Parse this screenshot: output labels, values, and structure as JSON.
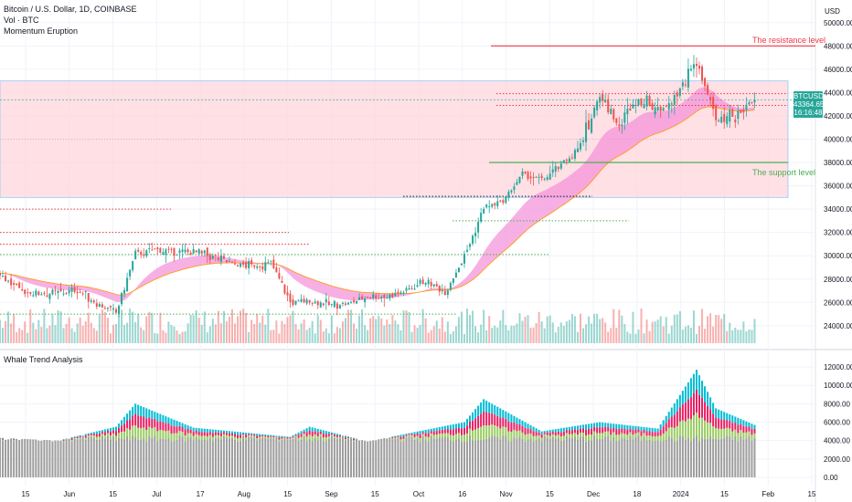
{
  "header": {
    "symbol_line": "Bitcoin / U.S. Dollar, 1D, COINBASE",
    "vol_line": "Vol · BTC",
    "indicator_line": "Momentum Eruption"
  },
  "lower_pane": {
    "title": "Whale Trend Analysis"
  },
  "price_axis": {
    "unit": "USD"
  },
  "last_price": {
    "symbol": "BTCUSD",
    "price": "43364.65",
    "countdown": "16:16:48"
  },
  "annotations": {
    "resistance": {
      "label": "The resistance level",
      "price": 48000,
      "color": "#f23645"
    },
    "support": {
      "label": "The support level",
      "price": 38000,
      "color": "#4caf50"
    }
  },
  "colors": {
    "up": "#26a69a",
    "down": "#ef5350",
    "cloud": "#f48fd8",
    "range_band": "#ffd6dc",
    "whale_up": "#00bcd4",
    "whale_down": "#e91e63",
    "whale_mid": "#9ccc65",
    "whale_base": "#9e9e9e"
  },
  "chart_data": [
    {
      "type": "candlestick",
      "title": "Bitcoin / U.S. Dollar, 1D, COINBASE",
      "ylim": [
        22500,
        51000
      ],
      "y_ticks": [
        "24000.00",
        "26000.00",
        "28000.00",
        "30000.00",
        "32000.00",
        "34000.00",
        "36000.00",
        "38000.00",
        "40000.00",
        "42000.00",
        "44000.00",
        "46000.00",
        "48000.00",
        "50000.00"
      ],
      "x_ticks": [
        "15",
        "Jun",
        "15",
        "Jul",
        "17",
        "Aug",
        "15",
        "Sep",
        "15",
        "Oct",
        "16",
        "Nov",
        "15",
        "Dec",
        "18",
        "2024",
        "15",
        "Feb",
        "15"
      ],
      "x_start": "2023-05-01",
      "x_end": "2024-02-20",
      "weekly_close": [
        [
          "2023-05-01",
          28500
        ],
        [
          "2023-05-08",
          26900
        ],
        [
          "2023-05-15",
          26800
        ],
        [
          "2023-05-22",
          26800
        ],
        [
          "2023-05-29",
          27100
        ],
        [
          "2023-06-05",
          25900
        ],
        [
          "2023-06-12",
          25100
        ],
        [
          "2023-06-19",
          30200
        ],
        [
          "2023-06-26",
          30500
        ],
        [
          "2023-07-03",
          30300
        ],
        [
          "2023-07-10",
          30300
        ],
        [
          "2023-07-17",
          29900
        ],
        [
          "2023-07-24",
          29300
        ],
        [
          "2023-07-31",
          29100
        ],
        [
          "2023-08-07",
          29400
        ],
        [
          "2023-08-14",
          26000
        ],
        [
          "2023-08-21",
          26100
        ],
        [
          "2023-08-28",
          25800
        ],
        [
          "2023-09-04",
          25900
        ],
        [
          "2023-09-11",
          26500
        ],
        [
          "2023-09-18",
          26500
        ],
        [
          "2023-09-25",
          27000
        ],
        [
          "2023-10-02",
          27900
        ],
        [
          "2023-10-09",
          26900
        ],
        [
          "2023-10-16",
          29900
        ],
        [
          "2023-10-23",
          34100
        ],
        [
          "2023-10-30",
          34700
        ],
        [
          "2023-11-06",
          37000
        ],
        [
          "2023-11-13",
          36500
        ],
        [
          "2023-11-20",
          37700
        ],
        [
          "2023-11-27",
          39500
        ],
        [
          "2023-12-04",
          43800
        ],
        [
          "2023-12-11",
          41300
        ],
        [
          "2023-12-18",
          43700
        ],
        [
          "2023-12-25",
          42200
        ],
        [
          "2024-01-01",
          44000
        ],
        [
          "2024-01-08",
          46500
        ],
        [
          "2024-01-15",
          41600
        ],
        [
          "2024-01-22",
          41800
        ],
        [
          "2024-01-29",
          43364.65
        ]
      ]
    },
    {
      "type": "bar",
      "title": "Whale Trend Analysis",
      "ylim": [
        -500,
        13000
      ],
      "y_ticks": [
        "0.00",
        "2000.00",
        "4000.00",
        "6000.00",
        "8000.00",
        "10000.00",
        "12000.00"
      ],
      "weekly_value": [
        [
          "2023-05-01",
          4300
        ],
        [
          "2023-05-22",
          4000
        ],
        [
          "2023-06-12",
          5500
        ],
        [
          "2023-06-19",
          8000
        ],
        [
          "2023-07-10",
          5400
        ],
        [
          "2023-08-14",
          4400
        ],
        [
          "2023-08-21",
          5500
        ],
        [
          "2023-09-11",
          3900
        ],
        [
          "2023-10-16",
          6000
        ],
        [
          "2023-10-23",
          8500
        ],
        [
          "2023-11-13",
          5000
        ],
        [
          "2023-12-04",
          6000
        ],
        [
          "2023-12-25",
          5300
        ],
        [
          "2024-01-08",
          11700
        ],
        [
          "2024-01-15",
          7500
        ],
        [
          "2024-01-29",
          5700
        ]
      ]
    }
  ]
}
